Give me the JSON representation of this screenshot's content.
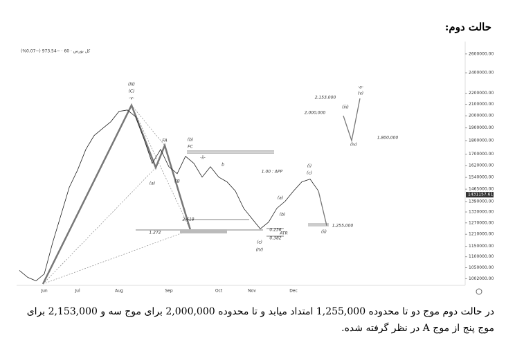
{
  "heading": "حالت دوم:",
  "caption": "در حالت دوم موج دو تا محدوده 1,255,000 امتداد میابد و تا محدوده 2,000,000 برای موج سه و 2,153,000 برای موج پنج از موج A در نظر گرفته شده.",
  "chart_data": {
    "type": "line",
    "title": "کل بورس · 60 · −973.54 (−0.07%)",
    "log": true,
    "ylim": [
      980000,
      2700000
    ],
    "yticks": [
      {
        "value": 2600000,
        "label": "2600000.00"
      },
      {
        "value": 2400000,
        "label": "2400000.00"
      },
      {
        "value": 2200000,
        "label": "2200000.00"
      },
      {
        "value": 2100000,
        "label": "2100000.00"
      },
      {
        "value": 2000000,
        "label": "2000000.00"
      },
      {
        "value": 1900000,
        "label": "1900000.00"
      },
      {
        "value": 1800000,
        "label": "1800000.00"
      },
      {
        "value": 1700000,
        "label": "1700000.00"
      },
      {
        "value": 1620000,
        "label": "1620000.00"
      },
      {
        "value": 1540000,
        "label": "1540000.00"
      },
      {
        "value": 1465000,
        "label": "1465000.00"
      },
      {
        "value": 1390000,
        "label": "1390000.00"
      },
      {
        "value": 1330000,
        "label": "1330000.00"
      },
      {
        "value": 1270000,
        "label": "1270000.00"
      },
      {
        "value": 1210000,
        "label": "1210000.00"
      },
      {
        "value": 1150000,
        "label": "1150000.00"
      },
      {
        "value": 1100000,
        "label": "1100000.00"
      },
      {
        "value": 1050000,
        "label": "1050000.00"
      },
      {
        "value": 1002000,
        "label": "1002000.00"
      }
    ],
    "last_price": 1431157.61,
    "categories": [
      null,
      null,
      null,
      "Jun",
      null,
      null,
      null,
      "Jul",
      null,
      null,
      null,
      null,
      "Aug",
      null,
      null,
      null,
      null,
      null,
      "Sep",
      null,
      null,
      null,
      null,
      null,
      "Oct",
      null,
      null,
      null,
      "Nov",
      null,
      null,
      null,
      null,
      "Dec",
      null,
      null,
      null,
      null,
      null,
      null,
      null,
      null,
      null,
      null,
      null,
      null,
      null,
      null,
      null,
      null,
      null,
      null,
      null,
      null
    ],
    "series": [
      {
        "color": "#222222",
        "values": [
          1038000,
          1008000,
          993000,
          1023000,
          1167000,
          1312000,
          1476000,
          1588000,
          1734000,
          1839000,
          1894000,
          1950000,
          2038000,
          2050000,
          1991000,
          1812000,
          1635000,
          1734000,
          1611000,
          1565000,
          1684000,
          1635000,
          1542000,
          1611000,
          1542000,
          1511000,
          1454000,
          1351000,
          1293000,
          1238000,
          1274000,
          1351000,
          1392000,
          1454000,
          1511000,
          1529000,
          1454000,
          null,
          null,
          null,
          null,
          null,
          null,
          null,
          null,
          null,
          null,
          null,
          null,
          null,
          null,
          null,
          null,
          null
        ]
      },
      {
        "color": "#777777",
        "values": [
          null,
          null,
          null,
          null,
          null,
          null,
          null,
          null,
          null,
          null,
          null,
          null,
          null,
          null,
          null,
          null,
          null,
          null,
          null,
          null,
          null,
          null,
          null,
          null,
          null,
          null,
          null,
          null,
          null,
          null,
          null,
          null,
          null,
          null,
          null,
          null,
          1454000,
          1255000,
          null,
          2000000,
          1800000,
          2153000,
          null,
          null,
          null,
          null,
          null,
          null,
          null,
          null,
          null,
          null,
          null,
          null
        ]
      }
    ],
    "annotations": [
      "(III)",
      "(C)",
      "-v-",
      "FA",
      "FB",
      "(a)",
      "(b)",
      "FC",
      "-ii-",
      "b",
      "(IV)",
      "(c)",
      "0.236",
      "0.382",
      "ATR",
      "2.618",
      "1.272",
      "1.00 : APP",
      "(i)",
      "(c)",
      "(a)",
      "(b)",
      "(ii)",
      "(iii)",
      "(iv)",
      "-a-",
      "(v)",
      "2,153,000",
      "2,000,000",
      "1,800,000",
      "1,255,000"
    ]
  }
}
